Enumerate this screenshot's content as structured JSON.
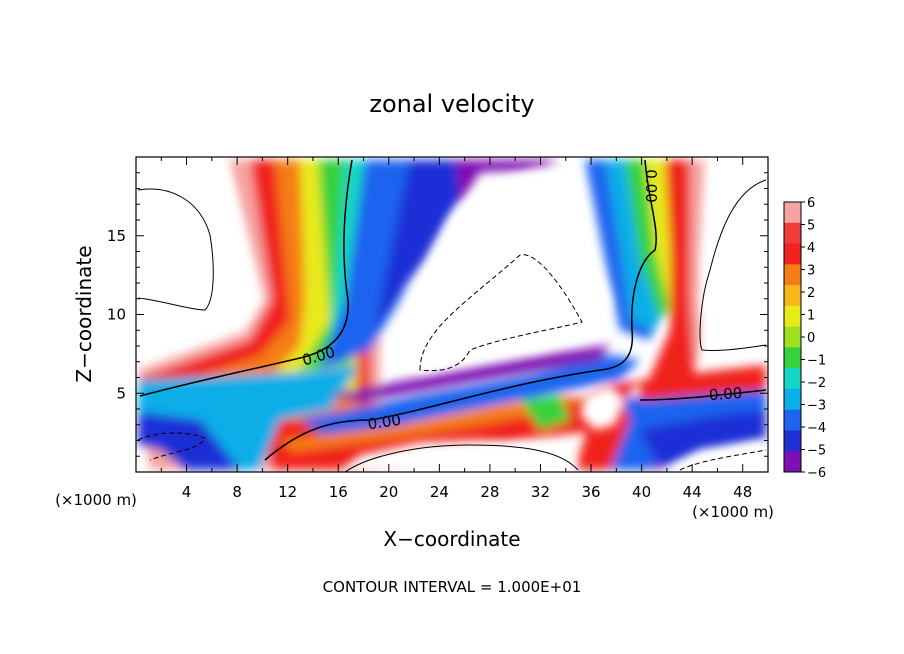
{
  "chart_data": {
    "type": "heatmap",
    "title": "zonal velocity",
    "xlabel": "X−coordinate",
    "ylabel": "Z−coordinate",
    "x_unit": "(×1000 m)",
    "y_unit": "(×1000 m)",
    "xlim": [
      0,
      50
    ],
    "ylim": [
      0,
      20
    ],
    "x_ticks": [
      4,
      8,
      12,
      16,
      20,
      24,
      28,
      32,
      36,
      40,
      44,
      48
    ],
    "y_ticks": [
      5,
      10,
      15
    ],
    "colorbar": {
      "labels": [
        "6",
        "5",
        "4",
        "3",
        "2",
        "1",
        "0",
        "−1",
        "−2",
        "−3",
        "−4",
        "−5",
        "−6"
      ],
      "colors": [
        "#f6a3a3",
        "#f23c3c",
        "#f0231e",
        "#f57d14",
        "#f7b71b",
        "#e9ea1a",
        "#9fdf22",
        "#35d23e",
        "#14d6c4",
        "#0aaee8",
        "#1e64ef",
        "#1f2fd6",
        "#7e0fb2"
      ]
    },
    "contour_labels": [
      "0.00",
      "0.00",
      "0.00",
      "0.00"
    ],
    "footer": "CONTOUR INTERVAL = 1.000E+01",
    "grid": false
  }
}
